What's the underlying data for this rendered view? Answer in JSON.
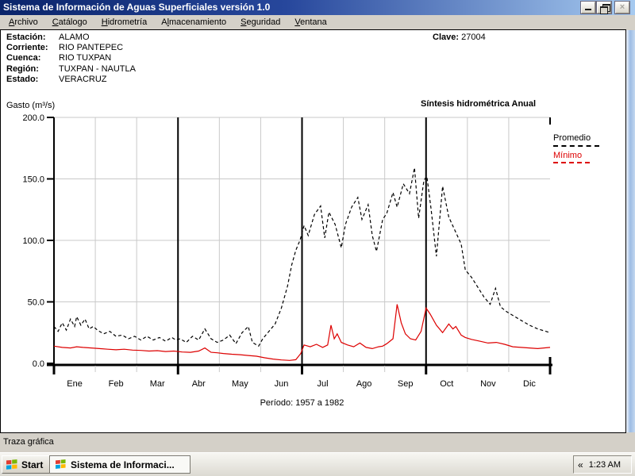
{
  "window": {
    "title": "Sistema de Información de Aguas Superficiales  versión 1.0",
    "controls": {
      "minimize_icon": "minimize-icon",
      "restore_icon": "restore-icon",
      "close_glyph": "×"
    }
  },
  "menu": {
    "items": [
      {
        "label": "Archivo",
        "mnemonic": 0
      },
      {
        "label": "Catálogo",
        "mnemonic": 0
      },
      {
        "label": "Hidrometría",
        "mnemonic": 0
      },
      {
        "label": "Almacenamiento",
        "mnemonic": 1
      },
      {
        "label": "Seguridad",
        "mnemonic": 0
      },
      {
        "label": "Ventana",
        "mnemonic": 0
      }
    ]
  },
  "station": {
    "fields": [
      {
        "label": "Estación:",
        "value": "ALAMO"
      },
      {
        "label": "Corriente:",
        "value": "RIO PANTEPEC"
      },
      {
        "label": "Cuenca:",
        "value": "RIO TUXPAN"
      },
      {
        "label": "Región:",
        "value": "TUXPAN - NAUTLA"
      },
      {
        "label": "Estado:",
        "value": "VERACRUZ"
      }
    ],
    "clave_label": "Clave:",
    "clave_value": "27004"
  },
  "chart_data": {
    "type": "line",
    "title": "Síntesis hidrométrica  Anual",
    "ylabel": "Gasto (m³/s)",
    "period": "Período:  1957 a 1982",
    "ylim": [
      0,
      200
    ],
    "yticks": [
      0,
      50,
      100,
      150,
      200
    ],
    "ytick_labels": [
      "0.0",
      "50.0",
      "100.0",
      "150.0",
      "200.0"
    ],
    "categories": [
      "Ene",
      "Feb",
      "Mar",
      "Abr",
      "May",
      "Jun",
      "Jul",
      "Ago",
      "Sep",
      "Oct",
      "Nov",
      "Dic"
    ],
    "grid": true,
    "legend_position": "top-right",
    "series": [
      {
        "name": "Promedio",
        "color": "#000000",
        "dash": "4 3",
        "points": [
          [
            0.0,
            30
          ],
          [
            0.1,
            26
          ],
          [
            0.2,
            33
          ],
          [
            0.3,
            27
          ],
          [
            0.4,
            36
          ],
          [
            0.5,
            30
          ],
          [
            0.55,
            38
          ],
          [
            0.65,
            31
          ],
          [
            0.75,
            36
          ],
          [
            0.85,
            28
          ],
          [
            0.95,
            30
          ],
          [
            1.05,
            27
          ],
          [
            1.2,
            24
          ],
          [
            1.35,
            26
          ],
          [
            1.5,
            22
          ],
          [
            1.65,
            23
          ],
          [
            1.8,
            20
          ],
          [
            1.95,
            22
          ],
          [
            2.1,
            19
          ],
          [
            2.25,
            22
          ],
          [
            2.4,
            19
          ],
          [
            2.55,
            21
          ],
          [
            2.7,
            18
          ],
          [
            2.85,
            21
          ],
          [
            2.95,
            19
          ],
          [
            3.05,
            20
          ],
          [
            3.2,
            17
          ],
          [
            3.35,
            22
          ],
          [
            3.5,
            19
          ],
          [
            3.65,
            28
          ],
          [
            3.8,
            20
          ],
          [
            3.95,
            17
          ],
          [
            4.1,
            19
          ],
          [
            4.25,
            23
          ],
          [
            4.4,
            16
          ],
          [
            4.55,
            25
          ],
          [
            4.7,
            30
          ],
          [
            4.8,
            17
          ],
          [
            4.95,
            14
          ],
          [
            5.05,
            20
          ],
          [
            5.2,
            26
          ],
          [
            5.35,
            32
          ],
          [
            5.5,
            45
          ],
          [
            5.65,
            63
          ],
          [
            5.75,
            80
          ],
          [
            5.85,
            92
          ],
          [
            5.95,
            100
          ],
          [
            6.05,
            112
          ],
          [
            6.15,
            104
          ],
          [
            6.3,
            121
          ],
          [
            6.45,
            128
          ],
          [
            6.55,
            102
          ],
          [
            6.65,
            123
          ],
          [
            6.8,
            113
          ],
          [
            6.95,
            94
          ],
          [
            7.05,
            113
          ],
          [
            7.2,
            127
          ],
          [
            7.35,
            135
          ],
          [
            7.45,
            117
          ],
          [
            7.6,
            129
          ],
          [
            7.7,
            104
          ],
          [
            7.8,
            91
          ],
          [
            7.95,
            117
          ],
          [
            8.05,
            122
          ],
          [
            8.2,
            139
          ],
          [
            8.3,
            127
          ],
          [
            8.45,
            146
          ],
          [
            8.6,
            138
          ],
          [
            8.72,
            159
          ],
          [
            8.82,
            118
          ],
          [
            8.95,
            149
          ],
          [
            9.02,
            152
          ],
          [
            9.12,
            126
          ],
          [
            9.25,
            87
          ],
          [
            9.4,
            144
          ],
          [
            9.55,
            119
          ],
          [
            9.7,
            108
          ],
          [
            9.85,
            97
          ],
          [
            9.95,
            76
          ],
          [
            10.1,
            70
          ],
          [
            10.25,
            62
          ],
          [
            10.4,
            54
          ],
          [
            10.55,
            48
          ],
          [
            10.68,
            61
          ],
          [
            10.8,
            46
          ],
          [
            10.95,
            42
          ],
          [
            11.1,
            39
          ],
          [
            11.3,
            35
          ],
          [
            11.5,
            31
          ],
          [
            11.7,
            28
          ],
          [
            11.9,
            26
          ],
          [
            12.0,
            25
          ]
        ]
      },
      {
        "name": "Mínimo",
        "color": "#dd0000",
        "dash": "",
        "points": [
          [
            0.0,
            14
          ],
          [
            0.2,
            13
          ],
          [
            0.4,
            12.5
          ],
          [
            0.55,
            13.5
          ],
          [
            0.7,
            13
          ],
          [
            0.9,
            12.5
          ],
          [
            1.1,
            12
          ],
          [
            1.3,
            11.5
          ],
          [
            1.5,
            11
          ],
          [
            1.7,
            11.5
          ],
          [
            1.9,
            10.8
          ],
          [
            2.1,
            10.5
          ],
          [
            2.3,
            10
          ],
          [
            2.5,
            10.3
          ],
          [
            2.7,
            9.6
          ],
          [
            2.9,
            10
          ],
          [
            3.1,
            9.2
          ],
          [
            3.3,
            9
          ],
          [
            3.5,
            10
          ],
          [
            3.65,
            12.5
          ],
          [
            3.8,
            9
          ],
          [
            3.95,
            8.6
          ],
          [
            4.1,
            8
          ],
          [
            4.3,
            7.4
          ],
          [
            4.5,
            7
          ],
          [
            4.7,
            6.4
          ],
          [
            4.9,
            5.8
          ],
          [
            5.1,
            4.5
          ],
          [
            5.3,
            3.5
          ],
          [
            5.5,
            2.8
          ],
          [
            5.7,
            2.4
          ],
          [
            5.85,
            3
          ],
          [
            5.97,
            8
          ],
          [
            6.05,
            15
          ],
          [
            6.2,
            13.5
          ],
          [
            6.35,
            15.5
          ],
          [
            6.5,
            13
          ],
          [
            6.62,
            15
          ],
          [
            6.7,
            31
          ],
          [
            6.78,
            20
          ],
          [
            6.85,
            24
          ],
          [
            6.95,
            17
          ],
          [
            7.1,
            15
          ],
          [
            7.25,
            13.5
          ],
          [
            7.4,
            16.5
          ],
          [
            7.55,
            13
          ],
          [
            7.7,
            12
          ],
          [
            7.85,
            13.5
          ],
          [
            7.95,
            14
          ],
          [
            8.05,
            16
          ],
          [
            8.2,
            20
          ],
          [
            8.3,
            48
          ],
          [
            8.4,
            33
          ],
          [
            8.5,
            24
          ],
          [
            8.62,
            20
          ],
          [
            8.75,
            19
          ],
          [
            8.88,
            26
          ],
          [
            9.0,
            45
          ],
          [
            9.1,
            40
          ],
          [
            9.25,
            31
          ],
          [
            9.4,
            25
          ],
          [
            9.55,
            32
          ],
          [
            9.65,
            28
          ],
          [
            9.72,
            30
          ],
          [
            9.85,
            23
          ],
          [
            9.95,
            21
          ],
          [
            10.1,
            19.5
          ],
          [
            10.3,
            18
          ],
          [
            10.5,
            16.5
          ],
          [
            10.7,
            17
          ],
          [
            10.9,
            15.5
          ],
          [
            11.1,
            13.5
          ],
          [
            11.3,
            13
          ],
          [
            11.5,
            12.5
          ],
          [
            11.7,
            12
          ],
          [
            11.85,
            12.5
          ],
          [
            12.0,
            13
          ]
        ]
      }
    ]
  },
  "status_bar": {
    "text": "Traza gráfica"
  },
  "taskbar": {
    "start_label": "Start",
    "task_label": "Sistema de Informaci...",
    "chevron": "«",
    "clock": "1:23 AM"
  }
}
